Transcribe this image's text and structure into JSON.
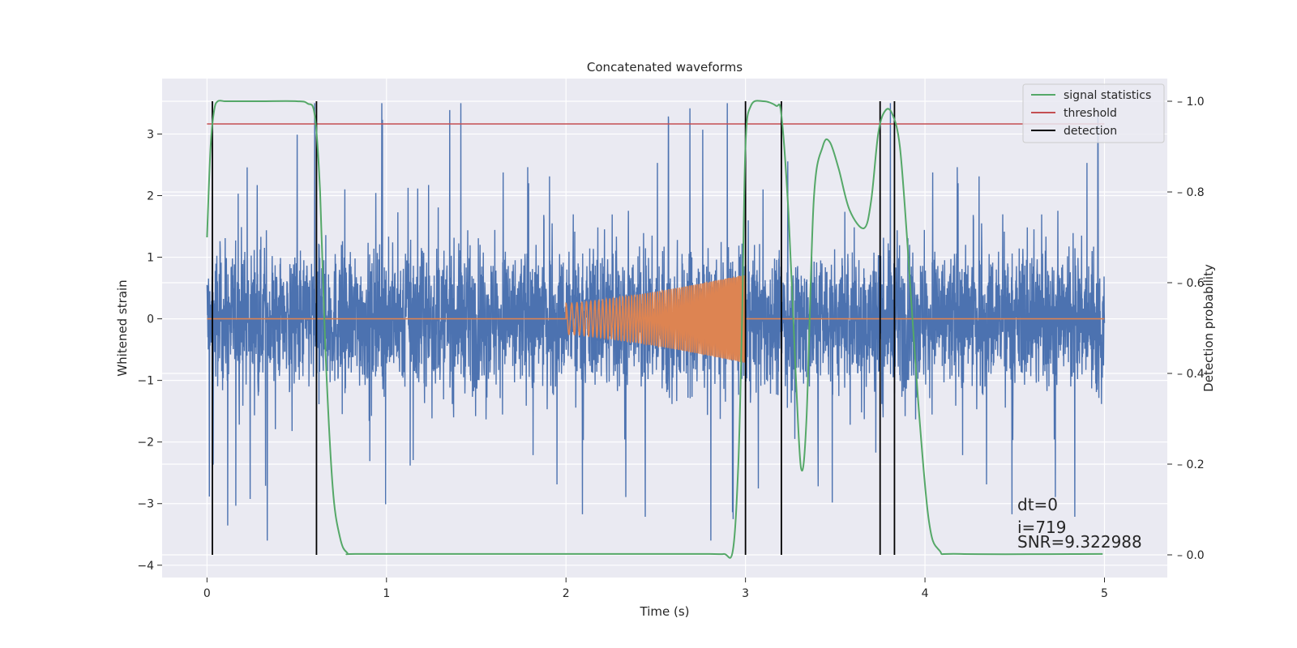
{
  "chart_data": {
    "type": "line",
    "title": "Concatenated waveforms",
    "xlabel": "Time (s)",
    "ylabel": "Whitened strain",
    "y2label": "Detection probability",
    "xlim": [
      -0.25,
      5.35
    ],
    "ylim": [
      -4.2,
      3.9
    ],
    "y2lim": [
      -0.05,
      1.05
    ],
    "xticks": [
      0,
      1,
      2,
      3,
      4,
      5
    ],
    "yticks": [
      -4,
      -3,
      -2,
      -1,
      0,
      1,
      2,
      3
    ],
    "y2ticks": [
      "0.0",
      "0.2",
      "0.4",
      "0.6",
      "0.8",
      "1.0"
    ],
    "grid": true,
    "legend_position": "top-right",
    "colors": {
      "background": "#eaeaf2",
      "noise": "#4c72b0",
      "injection": "#dd8452",
      "signal_statistics": "#55a868",
      "threshold": "#c44e52",
      "detection": "#000000"
    },
    "series": [
      {
        "name": "signal statistics",
        "axis": "right",
        "x": [
          0,
          0.02,
          0.04,
          0.06,
          0.1,
          0.15,
          0.3,
          0.5,
          0.56,
          0.6,
          0.63,
          0.66,
          0.7,
          0.74,
          0.78,
          0.85,
          1.5,
          2.5,
          2.8,
          2.88,
          2.93,
          2.96,
          2.98,
          3.0,
          3.03,
          3.1,
          3.17,
          3.2,
          3.24,
          3.28,
          3.31,
          3.34,
          3.38,
          3.43,
          3.47,
          3.52,
          3.58,
          3.66,
          3.7,
          3.74,
          3.78,
          3.82,
          3.86,
          3.9,
          3.96,
          4.02,
          4.08,
          4.2,
          4.99
        ],
        "values": [
          0.7,
          0.9,
          0.98,
          1.0,
          1.0,
          1.0,
          1.0,
          1.0,
          0.995,
          0.97,
          0.8,
          0.45,
          0.15,
          0.04,
          0.005,
          0.002,
          0.002,
          0.002,
          0.002,
          0.002,
          0.01,
          0.2,
          0.5,
          0.9,
          0.99,
          1.0,
          0.99,
          0.97,
          0.75,
          0.4,
          0.19,
          0.3,
          0.78,
          0.9,
          0.91,
          0.85,
          0.76,
          0.72,
          0.78,
          0.93,
          0.98,
          0.97,
          0.9,
          0.7,
          0.35,
          0.08,
          0.01,
          0.002,
          0.002
        ]
      },
      {
        "name": "threshold",
        "axis": "right",
        "x": [
          0,
          5
        ],
        "values": [
          0.95,
          0.95
        ]
      },
      {
        "name": "detection",
        "axis": "right",
        "x": [
          0.03,
          0.61,
          3.0,
          3.2,
          3.75,
          3.83
        ],
        "values": [
          1,
          1,
          1,
          1,
          1,
          1
        ]
      }
    ],
    "noise": {
      "x_range": [
        0,
        5
      ],
      "amplitude_envelope": [
        -3.6,
        3.5
      ],
      "dense_band": [
        -0.9,
        0.6
      ]
    },
    "injection": {
      "x_range": [
        2,
        3
      ],
      "amplitude_start": 0.25,
      "amplitude_end": 0.72
    }
  },
  "annotations": {
    "dt": "dt=0",
    "i": "i=719",
    "snr": "SNR=9.322988"
  }
}
